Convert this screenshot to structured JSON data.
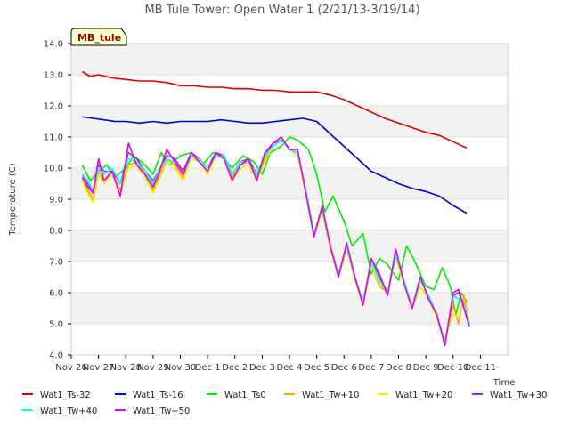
{
  "chart_data": {
    "type": "line",
    "title": "MB Tule Tower: Open Water 1 (2/21/13-3/19/14)",
    "xlabel": "Time",
    "ylabel": "Temperature (C)",
    "ylim": [
      4.0,
      14.0
    ],
    "xlim": [
      0,
      16
    ],
    "grid": true,
    "yticks": [
      "4.0",
      "5.0",
      "6.0",
      "7.0",
      "8.0",
      "9.0",
      "10.0",
      "11.0",
      "12.0",
      "13.0",
      "14.0"
    ],
    "xticks": [
      "Nov 26",
      "Nov 27",
      "Nov 28",
      "Nov 29",
      "Nov 30",
      "Dec 1",
      "Dec 2",
      "Dec 3",
      "Dec 4",
      "Dec 5",
      "Dec 6",
      "Dec 7",
      "Dec 8",
      "Dec 9",
      "Dec 10",
      "Dec 11"
    ],
    "station_label": "MB_tule",
    "legend_position": "bottom",
    "series": [
      {
        "name": "Wat1_Ts-32",
        "color": "#dd0000",
        "x": [
          0.4,
          0.7,
          1.0,
          1.5,
          2.0,
          2.5,
          3.0,
          3.5,
          4.0,
          4.5,
          5.0,
          5.5,
          6.0,
          6.5,
          7.0,
          7.5,
          8.0,
          8.5,
          9.0,
          9.5,
          10.0,
          10.5,
          11.0,
          11.5,
          12.0,
          12.5,
          13.0,
          13.5,
          14.0,
          14.5
        ],
        "values": [
          13.1,
          12.95,
          13.0,
          12.9,
          12.85,
          12.8,
          12.8,
          12.75,
          12.65,
          12.65,
          12.6,
          12.6,
          12.55,
          12.55,
          12.5,
          12.5,
          12.45,
          12.45,
          12.45,
          12.35,
          12.2,
          12.0,
          11.8,
          11.6,
          11.45,
          11.3,
          11.15,
          11.05,
          10.85,
          10.65
        ]
      },
      {
        "name": "Wat1_Ts-16",
        "color": "#0000cc",
        "x": [
          0.4,
          0.8,
          1.2,
          1.6,
          2.0,
          2.5,
          3.0,
          3.5,
          4.0,
          4.5,
          5.0,
          5.5,
          6.0,
          6.5,
          7.0,
          7.5,
          8.0,
          8.5,
          9.0,
          9.5,
          10.0,
          10.5,
          11.0,
          11.5,
          12.0,
          12.5,
          13.0,
          13.5,
          14.0,
          14.5
        ],
        "values": [
          11.65,
          11.6,
          11.55,
          11.5,
          11.5,
          11.45,
          11.5,
          11.45,
          11.5,
          11.5,
          11.5,
          11.55,
          11.5,
          11.45,
          11.45,
          11.5,
          11.55,
          11.6,
          11.5,
          11.1,
          10.7,
          10.3,
          9.9,
          9.7,
          9.5,
          9.35,
          9.25,
          9.1,
          8.8,
          8.55
        ]
      },
      {
        "name": "Wat1_Ts0",
        "color": "#00ee00",
        "x": [
          0.4,
          0.7,
          1.0,
          1.3,
          1.6,
          2.0,
          2.3,
          2.7,
          3.0,
          3.3,
          3.6,
          4.0,
          4.4,
          4.8,
          5.2,
          5.5,
          5.9,
          6.3,
          6.7,
          7.0,
          7.3,
          7.7,
          8.0,
          8.3,
          8.7,
          9.0,
          9.3,
          9.6,
          10.0,
          10.3,
          10.7,
          11.0,
          11.3,
          11.6,
          12.0,
          12.3,
          12.6,
          13.0,
          13.3,
          13.6,
          13.9,
          14.1,
          14.3,
          14.5
        ],
        "values": [
          10.1,
          9.6,
          9.9,
          10.1,
          9.7,
          10.0,
          10.4,
          10.1,
          9.8,
          10.5,
          10.1,
          10.4,
          10.5,
          10.1,
          10.5,
          10.4,
          10.0,
          10.4,
          10.2,
          9.8,
          10.5,
          10.7,
          11.0,
          10.9,
          10.6,
          9.8,
          8.6,
          9.1,
          8.3,
          7.5,
          7.9,
          6.6,
          7.1,
          6.9,
          6.4,
          7.5,
          7.0,
          6.2,
          6.1,
          6.8,
          6.2,
          5.3,
          6.0,
          5.7
        ]
      },
      {
        "name": "Wat1_Tw+10",
        "color": "#ffa500",
        "x": [
          0.4,
          0.6,
          0.8,
          1.0,
          1.2,
          1.5,
          1.8,
          2.1,
          2.4,
          2.7,
          3.0,
          3.2,
          3.5,
          3.8,
          4.1,
          4.4,
          4.7,
          5.0,
          5.3,
          5.6,
          5.9,
          6.2,
          6.5,
          6.8,
          7.1,
          7.4,
          7.7,
          8.0,
          8.3,
          8.6,
          8.9,
          9.2,
          9.5,
          9.8,
          10.1,
          10.4,
          10.7,
          11.0,
          11.3,
          11.6,
          11.9,
          12.2,
          12.5,
          12.8,
          13.1,
          13.4,
          13.7,
          14.0,
          14.2,
          14.4,
          14.6
        ],
        "values": [
          9.7,
          9.3,
          9.0,
          9.9,
          9.6,
          9.8,
          9.3,
          10.1,
          10.2,
          9.8,
          9.3,
          9.7,
          10.3,
          10.1,
          9.7,
          10.4,
          10.2,
          9.8,
          10.4,
          10.3,
          9.7,
          10.1,
          10.2,
          9.7,
          10.3,
          10.7,
          10.9,
          10.6,
          10.4,
          9.2,
          7.8,
          8.6,
          7.4,
          6.6,
          7.5,
          6.5,
          5.6,
          6.9,
          6.2,
          6.0,
          7.1,
          6.3,
          5.5,
          6.2,
          5.8,
          5.2,
          4.5,
          5.6,
          5.0,
          5.9,
          5.0
        ]
      },
      {
        "name": "Wat1_Tw+20",
        "color": "#eeee00",
        "x": [
          0.4,
          0.6,
          0.8,
          1.0,
          1.2,
          1.5,
          1.8,
          2.1,
          2.4,
          2.7,
          3.0,
          3.2,
          3.5,
          3.8,
          4.1,
          4.4,
          4.7,
          5.0,
          5.3,
          5.6,
          5.9,
          6.2,
          6.5,
          6.8,
          7.1,
          7.4,
          7.7,
          8.0,
          8.3,
          8.6,
          8.9,
          9.2,
          9.5,
          9.8,
          10.1,
          10.4,
          10.7,
          11.0,
          11.3,
          11.6,
          11.9,
          12.2,
          12.5,
          12.8,
          13.1,
          13.4,
          13.7,
          14.0,
          14.2,
          14.4,
          14.6
        ],
        "values": [
          9.6,
          9.2,
          8.9,
          9.8,
          9.5,
          9.8,
          9.2,
          10.0,
          10.1,
          9.7,
          9.2,
          9.6,
          10.2,
          10.0,
          9.6,
          10.3,
          10.2,
          9.8,
          10.4,
          10.3,
          9.6,
          10.0,
          10.1,
          9.6,
          10.2,
          10.7,
          10.9,
          10.6,
          10.4,
          9.2,
          7.8,
          8.6,
          7.4,
          6.5,
          7.4,
          6.4,
          5.6,
          6.9,
          6.3,
          6.0,
          7.1,
          6.3,
          5.5,
          6.2,
          5.8,
          5.2,
          4.5,
          5.3,
          5.2,
          5.7,
          5.0
        ]
      },
      {
        "name": "Wat1_Tw+30",
        "color": "#9932cc",
        "x": [
          0.4,
          0.6,
          0.8,
          1.0,
          1.2,
          1.5,
          1.8,
          2.1,
          2.4,
          2.7,
          3.0,
          3.2,
          3.5,
          3.8,
          4.1,
          4.4,
          4.7,
          5.0,
          5.3,
          5.6,
          5.9,
          6.2,
          6.5,
          6.8,
          7.1,
          7.4,
          7.7,
          8.0,
          8.3,
          8.6,
          8.9,
          9.2,
          9.5,
          9.8,
          10.1,
          10.4,
          10.7,
          11.0,
          11.3,
          11.6,
          11.9,
          12.2,
          12.5,
          12.8,
          13.1,
          13.4,
          13.7,
          14.0,
          14.2,
          14.4,
          14.6
        ],
        "values": [
          9.8,
          9.5,
          9.2,
          10.1,
          9.9,
          9.9,
          9.5,
          10.5,
          10.3,
          9.9,
          9.6,
          9.9,
          10.4,
          10.3,
          9.9,
          10.5,
          10.3,
          10.0,
          10.5,
          10.4,
          9.8,
          10.2,
          10.3,
          9.8,
          10.4,
          10.8,
          10.9,
          10.6,
          10.5,
          9.3,
          7.9,
          8.7,
          7.5,
          6.6,
          7.5,
          6.5,
          5.7,
          7.0,
          6.5,
          6.0,
          7.3,
          6.4,
          5.5,
          6.4,
          5.9,
          5.3,
          4.4,
          5.9,
          6.0,
          5.6,
          4.9
        ]
      },
      {
        "name": "Wat1_Tw+40",
        "color": "#00ffff",
        "x": [
          0.4,
          0.6,
          0.8,
          1.0,
          1.2,
          1.5,
          1.8,
          2.1,
          2.4,
          2.7,
          3.0,
          3.2,
          3.5,
          3.8,
          4.1,
          4.4,
          4.7,
          5.0,
          5.3,
          5.6,
          5.9,
          6.2,
          6.5,
          6.8,
          7.1,
          7.4,
          7.7,
          8.0,
          8.3,
          8.6,
          8.9,
          9.2,
          9.5,
          9.8,
          10.1,
          10.4,
          10.7,
          11.0,
          11.3,
          11.6,
          11.9,
          12.2,
          12.5,
          12.8,
          13.1,
          13.4,
          13.7,
          14.0,
          14.2,
          14.4,
          14.6
        ],
        "values": [
          9.8,
          9.6,
          9.3,
          10.0,
          9.8,
          10.0,
          9.5,
          10.3,
          10.2,
          9.9,
          9.5,
          9.9,
          10.3,
          10.2,
          9.8,
          10.4,
          10.3,
          10.0,
          10.4,
          10.4,
          9.8,
          10.2,
          10.2,
          9.8,
          10.4,
          10.7,
          10.9,
          10.6,
          10.5,
          9.3,
          7.9,
          8.7,
          7.5,
          6.6,
          7.5,
          6.5,
          5.7,
          7.0,
          6.4,
          6.0,
          7.2,
          6.4,
          5.5,
          6.4,
          5.9,
          5.3,
          4.4,
          5.9,
          5.8,
          5.6,
          5.0
        ]
      },
      {
        "name": "Wat1_Tw+50",
        "color": "#ee00ee",
        "x": [
          0.4,
          0.6,
          0.8,
          1.0,
          1.2,
          1.5,
          1.8,
          2.1,
          2.4,
          2.7,
          3.0,
          3.2,
          3.5,
          3.8,
          4.1,
          4.4,
          4.7,
          5.0,
          5.3,
          5.6,
          5.9,
          6.2,
          6.5,
          6.8,
          7.1,
          7.4,
          7.7,
          8.0,
          8.3,
          8.6,
          8.9,
          9.2,
          9.5,
          9.8,
          10.1,
          10.4,
          10.7,
          11.0,
          11.3,
          11.6,
          11.9,
          12.2,
          12.5,
          12.8,
          13.1,
          13.4,
          13.7,
          14.0,
          14.2,
          14.4,
          14.6
        ],
        "values": [
          9.7,
          9.4,
          9.2,
          10.3,
          9.6,
          9.9,
          9.1,
          10.8,
          10.1,
          9.8,
          9.4,
          9.8,
          10.6,
          10.2,
          9.8,
          10.5,
          10.2,
          9.9,
          10.5,
          10.3,
          9.6,
          10.1,
          10.3,
          9.6,
          10.5,
          10.8,
          11.0,
          10.6,
          10.6,
          9.2,
          7.8,
          8.8,
          7.5,
          6.5,
          7.6,
          6.5,
          5.6,
          7.1,
          6.6,
          5.9,
          7.4,
          6.3,
          5.5,
          6.5,
          5.8,
          5.3,
          4.3,
          6.0,
          6.1,
          5.5,
          4.9
        ]
      }
    ]
  }
}
